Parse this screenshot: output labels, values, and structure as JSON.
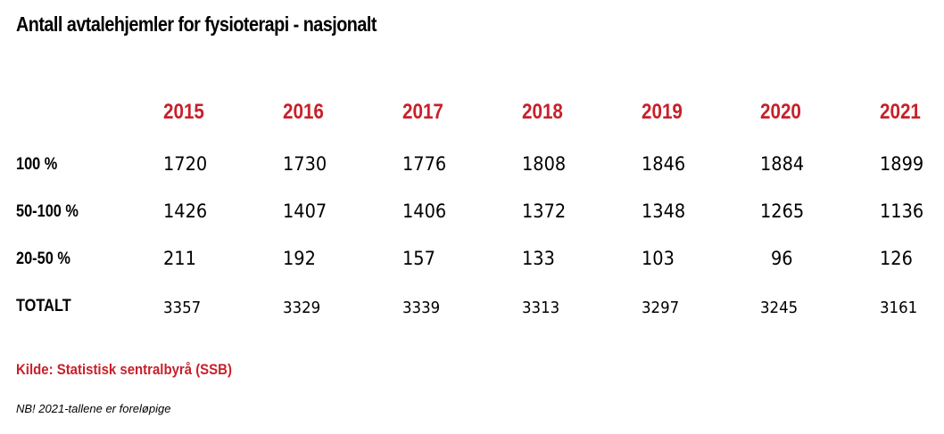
{
  "title": "Antall avtalehjemler for fysioterapi - nasjonalt",
  "chart_data": {
    "type": "table",
    "title": "Antall avtalehjemler for fysioterapi - nasjonalt",
    "columns": [
      "2015",
      "2016",
      "2017",
      "2018",
      "2019",
      "2020",
      "2021"
    ],
    "rows": [
      {
        "label": "100 %",
        "values": [
          1720,
          1730,
          1776,
          1808,
          1846,
          1884,
          1899
        ]
      },
      {
        "label": "50-100 %",
        "values": [
          1426,
          1407,
          1406,
          1372,
          1348,
          1265,
          1136
        ]
      },
      {
        "label": "20-50 %",
        "values": [
          211,
          192,
          157,
          133,
          103,
          96,
          126
        ]
      },
      {
        "label": "TOTALT",
        "values": [
          3357,
          3329,
          3339,
          3313,
          3297,
          3245,
          3161
        ]
      }
    ]
  },
  "source": "Kilde: Statistisk sentralbyrå (SSB)",
  "note": "NB! 2021-tallene er foreløpige",
  "colors": {
    "accent": "#c8202a",
    "text": "#000000"
  }
}
